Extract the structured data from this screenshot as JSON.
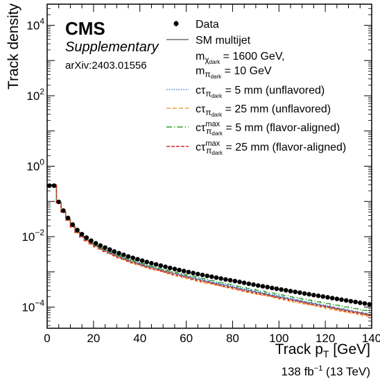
{
  "chart_data": {
    "type": "line",
    "xlabel": "Track p",
    "xlabel_sub": "T",
    "xlabel_unit": "[GeV]",
    "ylabel": "Track density",
    "xlim": [
      0,
      140
    ],
    "ylim_log10": [
      -4.6,
      4.6
    ],
    "y_scale": "log",
    "x_ticks": [
      0,
      20,
      40,
      60,
      80,
      100,
      120,
      140
    ],
    "y_ticks": [
      {
        "base": "10",
        "exp": "4",
        "value": 10000
      },
      {
        "base": "10",
        "exp": "2",
        "value": 100
      },
      {
        "base": "10",
        "exp": "0",
        "value": 1
      },
      {
        "base": "10",
        "exp": "-2",
        "value": 0.01
      },
      {
        "base": "10",
        "exp": "-4",
        "value": 0.0001
      }
    ],
    "experiment": "CMS",
    "label": "Supplementary",
    "reference": "arXiv:2403.01556",
    "lumi": {
      "value": "138 fb",
      "exp": "−1",
      "energy": "(13 TeV)"
    },
    "legend_title": {
      "line1": "m",
      "line1_sub": "χ",
      "line1_subsub": "dark",
      "line1_rest": " = 1600 GeV,",
      "line2": "m",
      "line2_sub": "π",
      "line2_subsub": "dark",
      "line2_rest": " = 10 GeV"
    },
    "series": [
      {
        "name": "Data",
        "style": "points",
        "color": "#000000",
        "x": [
          1,
          3,
          5,
          7,
          9,
          11,
          13,
          15,
          17,
          19,
          21,
          23,
          25,
          27,
          29,
          31,
          33,
          35,
          37,
          39,
          41,
          43,
          45,
          47,
          49,
          51,
          53,
          55,
          57,
          59,
          61,
          63,
          65,
          67,
          69,
          71,
          73,
          75,
          77,
          79,
          81,
          83,
          85,
          87,
          89,
          91,
          93,
          95,
          97,
          99,
          101,
          103,
          105,
          107,
          109,
          111,
          113,
          115,
          117,
          119,
          121,
          123,
          125,
          127,
          129,
          131,
          133,
          135,
          137,
          139
        ],
        "y": [
          0.28,
          0.28,
          0.097,
          0.055,
          0.034,
          0.022,
          0.0155,
          0.0118,
          0.0094,
          0.0077,
          0.0065,
          0.0056,
          0.0049,
          0.0043,
          0.0038,
          0.0034,
          0.00305,
          0.00275,
          0.0025,
          0.00228,
          0.00208,
          0.00191,
          0.00176,
          0.00163,
          0.00151,
          0.0014,
          0.0013,
          0.00121,
          0.00113,
          0.00106,
          0.00099,
          0.00093,
          0.00087,
          0.00082,
          0.00077,
          0.00073,
          0.00069,
          0.00065,
          0.00061,
          0.00058,
          0.00055,
          0.00052,
          0.00049,
          0.00046,
          0.000435,
          0.00041,
          0.00039,
          0.00037,
          0.00035,
          0.000332,
          0.000315,
          0.0003,
          0.000285,
          0.00027,
          0.000257,
          0.000244,
          0.000232,
          0.00022,
          0.00021,
          0.0002,
          0.00019,
          0.00018,
          0.000171,
          0.000163,
          0.000155,
          0.000147,
          0.00014,
          0.000133,
          0.000127,
          0.00012
        ]
      },
      {
        "name": "SM multijet",
        "style": "step",
        "color": "#6e6e6e",
        "dash": "",
        "x": [
          1,
          3,
          5,
          7,
          9,
          11,
          13,
          15,
          17,
          19,
          21,
          23,
          25,
          27,
          29,
          31,
          33,
          35,
          37,
          39,
          41,
          43,
          45,
          47,
          49,
          51,
          53,
          55,
          57,
          59,
          61,
          63,
          65,
          67,
          69,
          71,
          73,
          75,
          77,
          79,
          81,
          83,
          85,
          87,
          89,
          91,
          93,
          95,
          97,
          99,
          101,
          103,
          105,
          107,
          109,
          111,
          113,
          115,
          117,
          119,
          121,
          123,
          125,
          127,
          129,
          131,
          133,
          135,
          137,
          139
        ],
        "y": [
          0.3,
          0.3,
          0.092,
          0.05,
          0.03,
          0.0192,
          0.0134,
          0.0101,
          0.008,
          0.0065,
          0.0054,
          0.0046,
          0.004,
          0.0035,
          0.0031,
          0.0027,
          0.0024,
          0.00215,
          0.00194,
          0.00176,
          0.0016,
          0.00146,
          0.00134,
          0.00123,
          0.00113,
          0.00105,
          0.00097,
          0.0009,
          0.00083,
          0.00077,
          0.00072,
          0.00067,
          0.00062,
          0.00058,
          0.00054,
          0.0005,
          0.00047,
          0.00044,
          0.00041,
          0.00038,
          0.00036,
          0.000335,
          0.000315,
          0.000295,
          0.000277,
          0.00026,
          0.000244,
          0.000229,
          0.000215,
          0.000202,
          0.00019,
          0.000179,
          0.000168,
          0.000158,
          0.000149,
          0.00014,
          0.000132,
          0.000124,
          0.000117,
          0.00011,
          0.000104,
          9.8e-05,
          9.2e-05,
          8.7e-05,
          8.2e-05,
          7.7e-05,
          7.3e-05,
          6.9e-05,
          6.5e-05,
          6.1e-05
        ]
      },
      {
        "name_main": "cτ",
        "name_sub": "π",
        "name_subsub": "dark",
        "name_rest": " = 5 mm (unflavored)",
        "style": "step",
        "color": "#3a7fd5",
        "dash": "1.5,2",
        "x": [
          1,
          3,
          5,
          7,
          9,
          11,
          13,
          15,
          17,
          19,
          21,
          23,
          25,
          27,
          29,
          31,
          33,
          35,
          37,
          39,
          41,
          43,
          45,
          47,
          49,
          51,
          53,
          55,
          57,
          59,
          61,
          63,
          65,
          67,
          69,
          71,
          73,
          75,
          77,
          79,
          81,
          83,
          85,
          87,
          89,
          91,
          93,
          95,
          97,
          99,
          101,
          103,
          105,
          107,
          109,
          111,
          113,
          115,
          117,
          119,
          121,
          123,
          125,
          127,
          129,
          131,
          133,
          135,
          137,
          139
        ],
        "y": [
          0.3,
          0.3,
          0.095,
          0.051,
          0.031,
          0.0195,
          0.0136,
          0.0102,
          0.0081,
          0.0066,
          0.0055,
          0.0047,
          0.0041,
          0.0036,
          0.0032,
          0.0028,
          0.0025,
          0.00222,
          0.002,
          0.0018,
          0.00164,
          0.0015,
          0.00138,
          0.00127,
          0.00117,
          0.00108,
          0.001,
          0.00093,
          0.00086,
          0.0008,
          0.00074,
          0.00069,
          0.00064,
          0.0006,
          0.00056,
          0.00052,
          0.00049,
          0.00046,
          0.00043,
          0.0004,
          0.00037,
          0.00035,
          0.00033,
          0.00031,
          0.00029,
          0.000272,
          0.000255,
          0.00024,
          0.000225,
          0.000212,
          0.0002,
          0.000188,
          0.000177,
          0.000166,
          0.000156,
          0.000147,
          0.000138,
          0.00013,
          0.000123,
          0.000116,
          0.000109,
          0.000103,
          9.7e-05,
          9.1e-05,
          8.6e-05,
          8.1e-05,
          7.6e-05,
          7.2e-05,
          6.8e-05,
          6.4e-05
        ]
      },
      {
        "name_main": "cτ",
        "name_sub": "π",
        "name_subsub": "dark",
        "name_rest": " = 25 mm (unflavored)",
        "style": "step",
        "color": "#f5a13a",
        "dash": "6,3",
        "x": [
          1,
          3,
          5,
          7,
          9,
          11,
          13,
          15,
          17,
          19,
          21,
          23,
          25,
          27,
          29,
          31,
          33,
          35,
          37,
          39,
          41,
          43,
          45,
          47,
          49,
          51,
          53,
          55,
          57,
          59,
          61,
          63,
          65,
          67,
          69,
          71,
          73,
          75,
          77,
          79,
          81,
          83,
          85,
          87,
          89,
          91,
          93,
          95,
          97,
          99,
          101,
          103,
          105,
          107,
          109,
          111,
          113,
          115,
          117,
          119,
          121,
          123,
          125,
          127,
          129,
          131,
          133,
          135,
          137,
          139
        ],
        "y": [
          0.3,
          0.3,
          0.09,
          0.048,
          0.029,
          0.0185,
          0.0128,
          0.0096,
          0.0076,
          0.0061,
          0.0051,
          0.0043,
          0.0037,
          0.0032,
          0.0028,
          0.00248,
          0.0022,
          0.00196,
          0.00176,
          0.0016,
          0.00145,
          0.00132,
          0.00121,
          0.00111,
          0.00102,
          0.00094,
          0.00087,
          0.0008,
          0.00074,
          0.00069,
          0.00064,
          0.00059,
          0.00055,
          0.00051,
          0.00048,
          0.00045,
          0.00042,
          0.00039,
          0.00036,
          0.00034,
          0.00032,
          0.0003,
          0.00028,
          0.00026,
          0.000245,
          0.00023,
          0.000216,
          0.000203,
          0.00019,
          0.000179,
          0.000168,
          0.000158,
          0.000148,
          0.000139,
          0.000131,
          0.000123,
          0.000116,
          0.000109,
          0.000103,
          9.7e-05,
          9.1e-05,
          8.6e-05,
          8.1e-05,
          7.6e-05,
          7.2e-05,
          6.8e-05,
          6.4e-05,
          6e-05,
          5.7e-05,
          5.4e-05
        ]
      },
      {
        "name_main": "cτ",
        "name_sup": "max",
        "name_sub": "π",
        "name_subsub": "dark",
        "name_rest": " = 5 mm (flavor-aligned)",
        "style": "step",
        "color": "#2ca02c",
        "dash": "8,3,1.5,3",
        "x": [
          1,
          3,
          5,
          7,
          9,
          11,
          13,
          15,
          17,
          19,
          21,
          23,
          25,
          27,
          29,
          31,
          33,
          35,
          37,
          39,
          41,
          43,
          45,
          47,
          49,
          51,
          53,
          55,
          57,
          59,
          61,
          63,
          65,
          67,
          69,
          71,
          73,
          75,
          77,
          79,
          81,
          83,
          85,
          87,
          89,
          91,
          93,
          95,
          97,
          99,
          101,
          103,
          105,
          107,
          109,
          111,
          113,
          115,
          117,
          119,
          121,
          123,
          125,
          127,
          129,
          131,
          133,
          135,
          137,
          139
        ],
        "y": [
          0.3,
          0.3,
          0.094,
          0.051,
          0.031,
          0.0196,
          0.0137,
          0.0103,
          0.0082,
          0.0067,
          0.0056,
          0.0048,
          0.0042,
          0.0037,
          0.0033,
          0.0029,
          0.0026,
          0.00232,
          0.0021,
          0.0019,
          0.00173,
          0.00158,
          0.00145,
          0.00134,
          0.00124,
          0.00115,
          0.00107,
          0.00099,
          0.00092,
          0.00086,
          0.0008,
          0.00075,
          0.0007,
          0.00065,
          0.00061,
          0.00057,
          0.00053,
          0.0005,
          0.00047,
          0.00044,
          0.00041,
          0.000385,
          0.00036,
          0.00034,
          0.00032,
          0.0003,
          0.000282,
          0.000265,
          0.00025,
          0.000236,
          0.000222,
          0.00021,
          0.000198,
          0.000187,
          0.000177,
          0.000167,
          0.000158,
          0.000149,
          0.000141,
          0.000133,
          0.000126,
          0.000119,
          0.000113,
          0.000107,
          0.000101,
          9.6e-05,
          9.1e-05,
          8.6e-05,
          8.1e-05,
          7.7e-05
        ]
      },
      {
        "name_main": "cτ",
        "name_sup": "max",
        "name_sub": "π",
        "name_subsub": "dark",
        "name_rest": " = 25 mm (flavor-aligned)",
        "style": "step",
        "color": "#d62728",
        "dash": "5,2",
        "x": [
          1,
          3,
          5,
          7,
          9,
          11,
          13,
          15,
          17,
          19,
          21,
          23,
          25,
          27,
          29,
          31,
          33,
          35,
          37,
          39,
          41,
          43,
          45,
          47,
          49,
          51,
          53,
          55,
          57,
          59,
          61,
          63,
          65,
          67,
          69,
          71,
          73,
          75,
          77,
          79,
          81,
          83,
          85,
          87,
          89,
          91,
          93,
          95,
          97,
          99,
          101,
          103,
          105,
          107,
          109,
          111,
          113,
          115,
          117,
          119,
          121,
          123,
          125,
          127,
          129,
          131,
          133,
          135,
          137,
          139
        ],
        "y": [
          0.3,
          0.3,
          0.091,
          0.049,
          0.0295,
          0.0188,
          0.013,
          0.0098,
          0.0077,
          0.0062,
          0.0052,
          0.0044,
          0.0038,
          0.0033,
          0.0029,
          0.00255,
          0.00227,
          0.00202,
          0.00182,
          0.00165,
          0.0015,
          0.00137,
          0.00125,
          0.00115,
          0.00106,
          0.00098,
          0.0009,
          0.00083,
          0.00077,
          0.00072,
          0.00067,
          0.00062,
          0.00058,
          0.00054,
          0.0005,
          0.00047,
          0.00044,
          0.00041,
          0.00038,
          0.00036,
          0.00033,
          0.00031,
          0.00029,
          0.000275,
          0.00026,
          0.000244,
          0.00023,
          0.000216,
          0.000203,
          0.00019,
          0.000179,
          0.000168,
          0.000158,
          0.000149,
          0.00014,
          0.000132,
          0.000124,
          0.000117,
          0.00011,
          0.000104,
          9.8e-05,
          9.2e-05,
          8.7e-05,
          8.2e-05,
          7.7e-05,
          7.3e-05,
          6.9e-05,
          6.5e-05,
          6.1e-05,
          5.8e-05
        ]
      }
    ]
  }
}
